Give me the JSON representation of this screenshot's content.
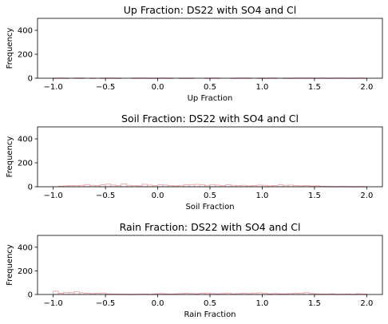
{
  "chart_data": [
    {
      "type": "bar",
      "title": "Up Fraction: DS22 with SO4 and Cl",
      "xlabel": "Up Fraction",
      "ylabel": "Frequency",
      "xlim": [
        -1.15,
        2.15
      ],
      "ylim": [
        0,
        500
      ],
      "xticks": [
        -1.0,
        -0.5,
        0.0,
        0.5,
        1.0,
        1.5,
        2.0
      ],
      "xtick_labels": [
        "−1.0",
        "−0.5",
        "0.0",
        "0.5",
        "1.0",
        "1.5",
        "2.0"
      ],
      "yticks": [
        0,
        200,
        400
      ],
      "ytick_labels": [
        "0",
        "200",
        "400"
      ],
      "bin_start": -1.0,
      "bin_width": 0.05,
      "values": [
        1,
        2,
        1,
        0,
        2,
        1,
        0,
        1,
        0,
        1,
        2,
        2,
        1,
        0,
        0,
        1,
        2,
        2,
        1,
        1,
        2,
        2,
        1,
        0,
        1,
        1,
        1,
        0,
        0,
        1,
        2,
        1,
        0,
        0,
        1,
        2,
        2,
        1,
        0,
        1,
        1,
        2,
        1,
        0,
        1,
        1,
        2,
        2,
        1,
        2,
        1,
        2,
        1,
        1,
        2,
        2,
        1,
        1,
        2,
        1
      ],
      "bar_color": "#e8a0a8",
      "grid": false
    },
    {
      "type": "bar",
      "title": "Soil Fraction: DS22 with SO4 and Cl",
      "xlabel": "Soil Fraction",
      "ylabel": "Frequency",
      "xlim": [
        -1.15,
        2.15
      ],
      "ylim": [
        0,
        500
      ],
      "xticks": [
        -1.0,
        -0.5,
        0.0,
        0.5,
        1.0,
        1.5,
        2.0
      ],
      "xtick_labels": [
        "−1.0",
        "−0.5",
        "0.0",
        "0.5",
        "1.0",
        "1.5",
        "2.0"
      ],
      "yticks": [
        0,
        200,
        400
      ],
      "ytick_labels": [
        "0",
        "200",
        "400"
      ],
      "bin_start": -1.0,
      "bin_width": 0.05,
      "values": [
        0,
        5,
        8,
        10,
        9,
        12,
        18,
        12,
        10,
        16,
        22,
        14,
        10,
        24,
        12,
        10,
        8,
        20,
        14,
        10,
        18,
        14,
        10,
        8,
        12,
        16,
        18,
        20,
        16,
        12,
        18,
        14,
        10,
        16,
        12,
        10,
        12,
        8,
        10,
        14,
        12,
        8,
        10,
        16,
        12,
        14,
        10,
        8,
        10,
        6,
        8,
        4,
        3,
        2,
        2,
        3,
        2,
        1,
        2,
        1
      ],
      "bar_color": "#e8a0a8",
      "grid": false
    },
    {
      "type": "bar",
      "title": "Rain Fraction: DS22 with SO4 and Cl",
      "xlabel": "Rain Fraction",
      "ylabel": "Frequency",
      "xlim": [
        -1.15,
        2.15
      ],
      "ylim": [
        0,
        500
      ],
      "xticks": [
        -1.0,
        -0.5,
        0.0,
        0.5,
        1.0,
        1.5,
        2.0
      ],
      "xtick_labels": [
        "−1.0",
        "−0.5",
        "0.0",
        "0.5",
        "1.0",
        "1.5",
        "2.0"
      ],
      "yticks": [
        0,
        200,
        400
      ],
      "ytick_labels": [
        "0",
        "200",
        "400"
      ],
      "bin_start": -1.0,
      "bin_width": 0.05,
      "values": [
        28,
        10,
        18,
        16,
        24,
        14,
        10,
        8,
        10,
        12,
        6,
        4,
        3,
        3,
        2,
        2,
        3,
        4,
        2,
        6,
        8,
        6,
        4,
        6,
        8,
        10,
        8,
        6,
        10,
        12,
        8,
        6,
        8,
        12,
        6,
        8,
        10,
        8,
        12,
        14,
        10,
        6,
        8,
        6,
        6,
        8,
        10,
        12,
        16,
        8,
        6,
        4,
        4,
        6,
        2,
        3,
        4,
        2,
        6,
        4
      ],
      "bar_color": "#e8a0a8",
      "grid": false
    }
  ]
}
